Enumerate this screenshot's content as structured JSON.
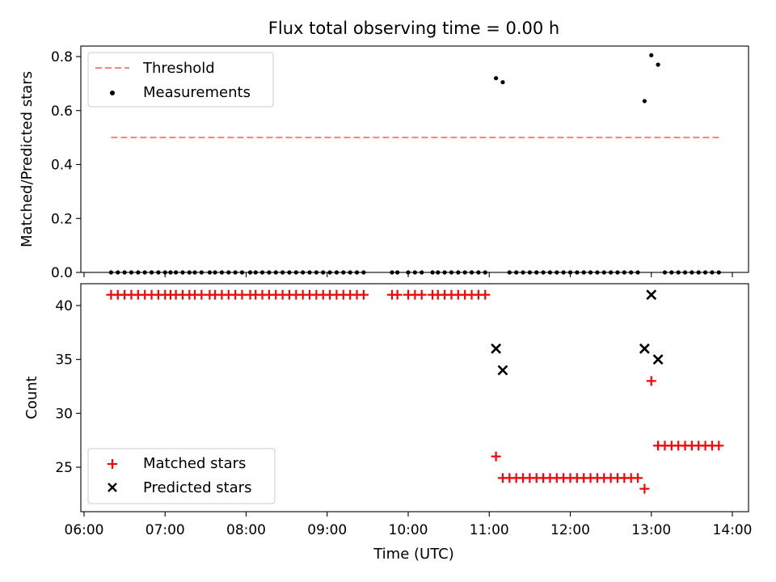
{
  "title": "Flux total observing time = 0.00 h",
  "colors": {
    "threshold": "#ff7f7f",
    "measurements": "#000000",
    "matched": "#ff0000",
    "predicted": "#000000"
  },
  "chart_data": [
    {
      "type": "scatter",
      "ylabel": "Matched/Predicted stars",
      "xlim": [
        "06:00",
        "14:00"
      ],
      "ylim": [
        0,
        0.85
      ],
      "yticks": [
        "0.0",
        "0.2",
        "0.4",
        "0.6",
        "0.8"
      ],
      "grid": false,
      "legend_position": "top-left",
      "threshold": {
        "name": "Threshold",
        "value": 0.5,
        "x_range": [
          "06:20",
          "13:50"
        ],
        "style": "dashed"
      },
      "series": [
        {
          "name": "Measurements",
          "points": [
            [
              "06:20",
              0
            ],
            [
              "06:25",
              0
            ],
            [
              "06:30",
              0
            ],
            [
              "06:35",
              0
            ],
            [
              "06:40",
              0
            ],
            [
              "06:45",
              0
            ],
            [
              "06:50",
              0
            ],
            [
              "06:55",
              0
            ],
            [
              "07:00",
              0
            ],
            [
              "07:04",
              0
            ],
            [
              "07:08",
              0
            ],
            [
              "07:13",
              0
            ],
            [
              "07:18",
              0
            ],
            [
              "07:22",
              0
            ],
            [
              "07:27",
              0
            ],
            [
              "07:33",
              0
            ],
            [
              "07:37",
              0
            ],
            [
              "07:42",
              0
            ],
            [
              "07:47",
              0
            ],
            [
              "07:52",
              0
            ],
            [
              "07:57",
              0
            ],
            [
              "08:03",
              0
            ],
            [
              "08:07",
              0
            ],
            [
              "08:12",
              0
            ],
            [
              "08:17",
              0
            ],
            [
              "08:22",
              0
            ],
            [
              "08:27",
              0
            ],
            [
              "08:32",
              0
            ],
            [
              "08:37",
              0
            ],
            [
              "08:42",
              0
            ],
            [
              "08:47",
              0
            ],
            [
              "08:52",
              0
            ],
            [
              "08:57",
              0
            ],
            [
              "09:02",
              0
            ],
            [
              "09:07",
              0
            ],
            [
              "09:12",
              0
            ],
            [
              "09:17",
              0
            ],
            [
              "09:22",
              0
            ],
            [
              "09:27",
              0
            ],
            [
              "09:48",
              0
            ],
            [
              "09:52",
              0
            ],
            [
              "10:00",
              0
            ],
            [
              "10:05",
              0
            ],
            [
              "10:10",
              0
            ],
            [
              "10:18",
              0
            ],
            [
              "10:22",
              0
            ],
            [
              "10:27",
              0
            ],
            [
              "10:32",
              0
            ],
            [
              "10:37",
              0
            ],
            [
              "10:42",
              0
            ],
            [
              "10:47",
              0
            ],
            [
              "10:52",
              0
            ],
            [
              "10:57",
              0
            ],
            [
              "11:05",
              0.72
            ],
            [
              "11:10",
              0.705
            ],
            [
              "11:15",
              0
            ],
            [
              "11:20",
              0
            ],
            [
              "11:25",
              0
            ],
            [
              "11:30",
              0
            ],
            [
              "11:35",
              0
            ],
            [
              "11:40",
              0
            ],
            [
              "11:45",
              0
            ],
            [
              "11:50",
              0
            ],
            [
              "11:55",
              0
            ],
            [
              "12:00",
              0
            ],
            [
              "12:05",
              0
            ],
            [
              "12:10",
              0
            ],
            [
              "12:15",
              0
            ],
            [
              "12:20",
              0
            ],
            [
              "12:25",
              0
            ],
            [
              "12:30",
              0
            ],
            [
              "12:35",
              0
            ],
            [
              "12:40",
              0
            ],
            [
              "12:45",
              0
            ],
            [
              "12:50",
              0
            ],
            [
              "12:55",
              0.635
            ],
            [
              "13:00",
              0.805
            ],
            [
              "13:05",
              0.77
            ],
            [
              "13:10",
              0
            ],
            [
              "13:15",
              0
            ],
            [
              "13:20",
              0
            ],
            [
              "13:25",
              0
            ],
            [
              "13:30",
              0
            ],
            [
              "13:35",
              0
            ],
            [
              "13:40",
              0
            ],
            [
              "13:45",
              0
            ],
            [
              "13:50",
              0
            ]
          ]
        }
      ]
    },
    {
      "type": "scatter",
      "xlabel": "Time (UTC)",
      "ylabel": "Count",
      "xlim": [
        "06:00",
        "14:00"
      ],
      "ylim": [
        22,
        42
      ],
      "xticks": [
        "06:00",
        "07:00",
        "08:00",
        "09:00",
        "10:00",
        "11:00",
        "12:00",
        "13:00",
        "14:00"
      ],
      "yticks": [
        "25",
        "30",
        "35",
        "40"
      ],
      "grid": false,
      "legend_position": "bottom-left",
      "series": [
        {
          "name": "Matched stars",
          "points": [
            [
              "06:20",
              41
            ],
            [
              "06:25",
              41
            ],
            [
              "06:30",
              41
            ],
            [
              "06:35",
              41
            ],
            [
              "06:40",
              41
            ],
            [
              "06:45",
              41
            ],
            [
              "06:50",
              41
            ],
            [
              "06:55",
              41
            ],
            [
              "07:00",
              41
            ],
            [
              "07:04",
              41
            ],
            [
              "07:08",
              41
            ],
            [
              "07:13",
              41
            ],
            [
              "07:18",
              41
            ],
            [
              "07:22",
              41
            ],
            [
              "07:27",
              41
            ],
            [
              "07:33",
              41
            ],
            [
              "07:37",
              41
            ],
            [
              "07:42",
              41
            ],
            [
              "07:47",
              41
            ],
            [
              "07:52",
              41
            ],
            [
              "07:57",
              41
            ],
            [
              "08:03",
              41
            ],
            [
              "08:07",
              41
            ],
            [
              "08:12",
              41
            ],
            [
              "08:17",
              41
            ],
            [
              "08:22",
              41
            ],
            [
              "08:27",
              41
            ],
            [
              "08:32",
              41
            ],
            [
              "08:37",
              41
            ],
            [
              "08:42",
              41
            ],
            [
              "08:47",
              41
            ],
            [
              "08:52",
              41
            ],
            [
              "08:57",
              41
            ],
            [
              "09:02",
              41
            ],
            [
              "09:07",
              41
            ],
            [
              "09:12",
              41
            ],
            [
              "09:17",
              41
            ],
            [
              "09:22",
              41
            ],
            [
              "09:27",
              41
            ],
            [
              "09:48",
              41
            ],
            [
              "09:52",
              41
            ],
            [
              "10:00",
              41
            ],
            [
              "10:05",
              41
            ],
            [
              "10:10",
              41
            ],
            [
              "10:18",
              41
            ],
            [
              "10:22",
              41
            ],
            [
              "10:27",
              41
            ],
            [
              "10:32",
              41
            ],
            [
              "10:37",
              41
            ],
            [
              "10:42",
              41
            ],
            [
              "10:47",
              41
            ],
            [
              "10:52",
              41
            ],
            [
              "10:57",
              41
            ],
            [
              "11:05",
              26
            ],
            [
              "11:10",
              24
            ],
            [
              "11:15",
              24
            ],
            [
              "11:20",
              24
            ],
            [
              "11:25",
              24
            ],
            [
              "11:30",
              24
            ],
            [
              "11:35",
              24
            ],
            [
              "11:40",
              24
            ],
            [
              "11:45",
              24
            ],
            [
              "11:50",
              24
            ],
            [
              "11:55",
              24
            ],
            [
              "12:00",
              24
            ],
            [
              "12:05",
              24
            ],
            [
              "12:10",
              24
            ],
            [
              "12:15",
              24
            ],
            [
              "12:20",
              24
            ],
            [
              "12:25",
              24
            ],
            [
              "12:30",
              24
            ],
            [
              "12:35",
              24
            ],
            [
              "12:40",
              24
            ],
            [
              "12:45",
              24
            ],
            [
              "12:50",
              24
            ],
            [
              "12:55",
              23
            ],
            [
              "13:00",
              33
            ],
            [
              "13:05",
              27
            ],
            [
              "13:10",
              27
            ],
            [
              "13:15",
              27
            ],
            [
              "13:20",
              27
            ],
            [
              "13:25",
              27
            ],
            [
              "13:30",
              27
            ],
            [
              "13:35",
              27
            ],
            [
              "13:40",
              27
            ],
            [
              "13:45",
              27
            ],
            [
              "13:50",
              27
            ]
          ]
        },
        {
          "name": "Predicted stars",
          "points": [
            [
              "11:05",
              36
            ],
            [
              "11:10",
              34
            ],
            [
              "12:55",
              36
            ],
            [
              "13:00",
              41
            ],
            [
              "13:05",
              35
            ]
          ]
        }
      ]
    }
  ]
}
